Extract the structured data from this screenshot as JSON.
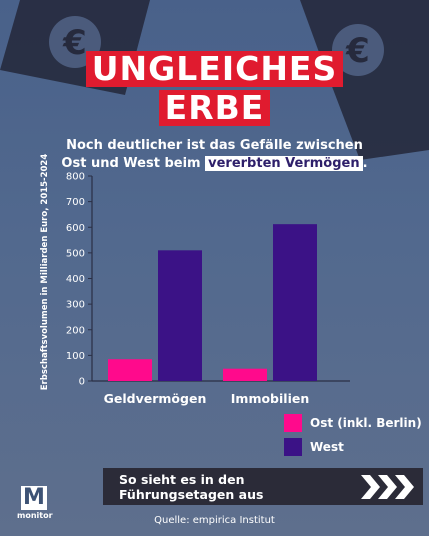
{
  "title_line1": "UNGLEICHES",
  "title_line2": "ERBE",
  "subtitle_line1": "Noch deutlicher ist das Gefälle zwischen",
  "subtitle_line2_prefix": "Ost und West beim ",
  "subtitle_line2_highlight": "vererbten Vermögen",
  "subtitle_line2_suffix": ".",
  "banner_text": "So sieht es in den Führungsetagen aus",
  "banner_arrows": "❯❯❯",
  "source": "Quelle: empirica Institut",
  "logo_letter": "M",
  "logo_word": "monitor",
  "colors": {
    "ost": "#ff0a8c",
    "west": "#3b1286",
    "accent": "#e01b2f",
    "background": "#4f6690"
  },
  "chart_data": {
    "type": "bar",
    "categories": [
      "Geldvermögen",
      "Immobilien"
    ],
    "series": [
      {
        "name": "Ost (inkl. Berlin)",
        "values": [
          85,
          48
        ]
      },
      {
        "name": "West",
        "values": [
          510,
          612
        ]
      }
    ],
    "ylabel": "Erbschaftsvolumen in Milliarden Euro, 2015-2024",
    "xlabel": "",
    "ylim": [
      0,
      800
    ],
    "yticks": [
      0,
      100,
      200,
      300,
      400,
      500,
      600,
      700,
      800
    ],
    "legend": "bottom-right",
    "grid": false
  }
}
